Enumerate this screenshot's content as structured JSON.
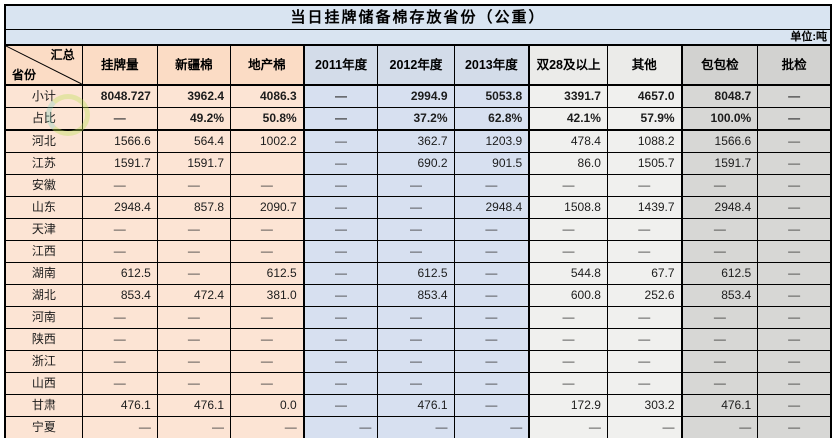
{
  "title": "当日挂牌储备棉存放省份（公重）",
  "unit_label": "单位:吨",
  "corner": {
    "top_label": "汇总",
    "bottom_label": "省份"
  },
  "columns": [
    "挂牌量",
    "新疆棉",
    "地产棉",
    "2011年度",
    "2012年度",
    "2013年度",
    "双28及以上",
    "其他",
    "包包检",
    "批检"
  ],
  "rows": [
    {
      "label": "小计",
      "bold": true,
      "values": [
        "8048.727",
        "3962.4",
        "4086.3",
        "—",
        "2994.9",
        "5053.8",
        "3391.7",
        "4657.0",
        "8048.7",
        "—"
      ]
    },
    {
      "label": "占比",
      "bold": true,
      "thick_bottom": true,
      "values": [
        "—",
        "49.2%",
        "50.8%",
        "—",
        "37.2%",
        "62.8%",
        "42.1%",
        "57.9%",
        "100.0%",
        "—"
      ]
    },
    {
      "label": "河北",
      "values": [
        "1566.6",
        "564.4",
        "1002.2",
        "—",
        "362.7",
        "1203.9",
        "478.4",
        "1088.2",
        "1566.6",
        "—"
      ]
    },
    {
      "label": "江苏",
      "values": [
        "1591.7",
        "1591.7",
        "",
        "—",
        "690.2",
        "901.5",
        "86.0",
        "1505.7",
        "1591.7",
        "—"
      ]
    },
    {
      "label": "安徽",
      "values": [
        "—",
        "—",
        "—",
        "—",
        "—",
        "—",
        "—",
        "—",
        "—",
        "—"
      ]
    },
    {
      "label": "山东",
      "values": [
        "2948.4",
        "857.8",
        "2090.7",
        "—",
        "—",
        "2948.4",
        "1508.8",
        "1439.7",
        "2948.4",
        "—"
      ]
    },
    {
      "label": "天津",
      "values": [
        "—",
        "—",
        "—",
        "—",
        "—",
        "—",
        "—",
        "—",
        "—",
        "—"
      ]
    },
    {
      "label": "江西",
      "values": [
        "—",
        "—",
        "—",
        "—",
        "—",
        "—",
        "—",
        "—",
        "—",
        "—"
      ]
    },
    {
      "label": "湖南",
      "values": [
        "612.5",
        "—",
        "612.5",
        "—",
        "612.5",
        "—",
        "544.8",
        "67.7",
        "612.5",
        "—"
      ]
    },
    {
      "label": "湖北",
      "values": [
        "853.4",
        "472.4",
        "381.0",
        "—",
        "853.4",
        "—",
        "600.8",
        "252.6",
        "853.4",
        "—"
      ]
    },
    {
      "label": "河南",
      "values": [
        "—",
        "—",
        "—",
        "—",
        "—",
        "—",
        "—",
        "—",
        "—",
        "—"
      ]
    },
    {
      "label": "陕西",
      "values": [
        "—",
        "—",
        "—",
        "—",
        "—",
        "—",
        "—",
        "—",
        "—",
        "—"
      ]
    },
    {
      "label": "浙江",
      "values": [
        "—",
        "—",
        "—",
        "—",
        "—",
        "—",
        "—",
        "—",
        "—",
        "—"
      ]
    },
    {
      "label": "山西",
      "values": [
        "—",
        "—",
        "—",
        "—",
        "—",
        "—",
        "—",
        "—",
        "—",
        "—"
      ]
    },
    {
      "label": "甘肃",
      "values": [
        "476.1",
        "476.1",
        "0.0",
        "—",
        "476.1",
        "—",
        "172.9",
        "303.2",
        "476.1",
        "—"
      ]
    },
    {
      "label": "宁夏",
      "dash_align": "right",
      "values": [
        "—",
        "—",
        "—",
        "—",
        "—",
        "—",
        "—",
        "—",
        "—",
        "—"
      ]
    }
  ],
  "colors": {
    "title_bg": "#d9e4f1",
    "peach_bg": "#fce4d4",
    "peach_header_bg": "#fbdcc5",
    "blue_bg": "#d7e0f0",
    "blue_header_bg": "#d3dce9",
    "light_gray_bg": "#f0f0ee",
    "light_gray_header_bg": "#ebebe9",
    "dark_gray_bg": "#d7d7d5",
    "dark_gray_header_bg": "#d2d2d0",
    "border": "#000000"
  }
}
